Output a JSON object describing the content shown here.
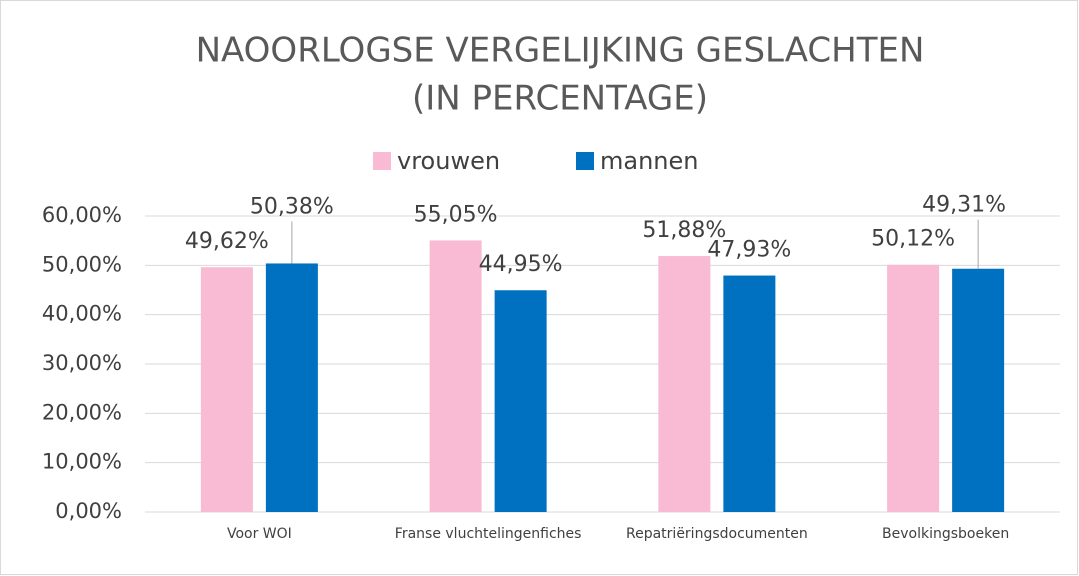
{
  "chart_data": {
    "type": "bar",
    "title": [
      "NAOORLOGSE VERGELIJKING GESLACHTEN",
      "(IN PERCENTAGE)"
    ],
    "categories": [
      "Voor WOI",
      "Franse vluchtelingenfiches",
      "Repatriëringsdocumenten",
      "Bevolkingsboeken"
    ],
    "series": [
      {
        "name": "vrouwen",
        "color": "#f8bbd3",
        "values": [
          49.62,
          55.05,
          51.88,
          50.12
        ],
        "value_labels": [
          "49,62%",
          "55,05%",
          "51,88%",
          "50,12%"
        ]
      },
      {
        "name": "mannen",
        "color": "#0070c0",
        "values": [
          50.38,
          44.95,
          47.93,
          49.31
        ],
        "value_labels": [
          "50,38%",
          "44,95%",
          "47,93%",
          "49,31%"
        ]
      }
    ],
    "ylim": [
      0,
      60
    ],
    "yticks": [
      {
        "value": 0,
        "label": "0,00%"
      },
      {
        "value": 10,
        "label": "10,00%"
      },
      {
        "value": 20,
        "label": "20,00%"
      },
      {
        "value": 30,
        "label": "30,00%"
      },
      {
        "value": 40,
        "label": "40,00%"
      },
      {
        "value": 50,
        "label": "50,00%"
      },
      {
        "value": 60,
        "label": "60,00%"
      }
    ],
    "grid": true,
    "legend": "top"
  }
}
